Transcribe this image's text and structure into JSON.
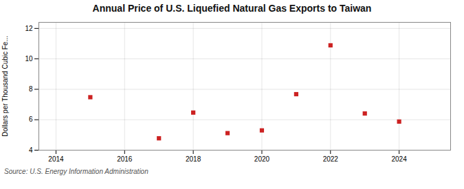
{
  "chart_data": {
    "type": "scatter",
    "title": "Annual Price of U.S. Liquefied Natural Gas Exports to Taiwan",
    "ylabel": "Dollars per Thousand Cubic Fe...",
    "source": "Source: U.S. Energy Information Administration",
    "x": [
      2015,
      2017,
      2018,
      2019,
      2020,
      2021,
      2022,
      2023,
      2024
    ],
    "values": [
      7.48,
      4.78,
      6.47,
      5.12,
      5.3,
      7.68,
      10.89,
      6.41,
      5.88
    ],
    "xlim": [
      2013.5,
      2025.5
    ],
    "xticks": [
      2014,
      2016,
      2018,
      2020,
      2022,
      2024
    ],
    "ylim": [
      4,
      12.4
    ],
    "yticks": [
      4,
      6,
      8,
      10,
      12
    ],
    "color": "#cc2222",
    "marker": "square",
    "grid": true
  }
}
